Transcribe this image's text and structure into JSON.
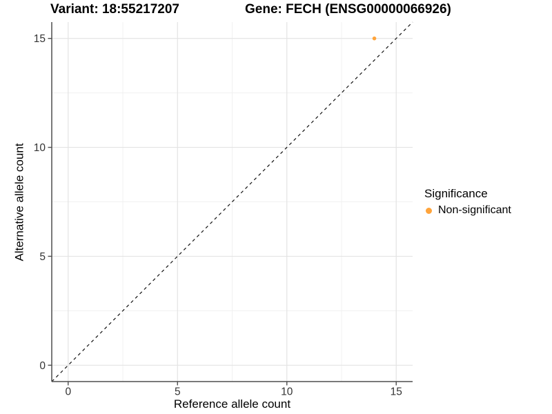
{
  "titles": {
    "variant": "Variant: 18:55217207",
    "gene": "Gene: FECH (ENSG00000066926)"
  },
  "chart_data": {
    "type": "scatter",
    "title_left": "Variant: 18:55217207",
    "title_right": "Gene: FECH (ENSG00000066926)",
    "xlabel": "Reference allele count",
    "ylabel": "Alternative allele count",
    "xlim": [
      -0.75,
      15.75
    ],
    "ylim": [
      -0.75,
      15.75
    ],
    "x_ticks": [
      0,
      5,
      10,
      15
    ],
    "y_ticks": [
      0,
      5,
      10,
      15
    ],
    "x_minor_ticks": [
      2.5,
      7.5,
      12.5
    ],
    "y_minor_ticks": [
      2.5,
      7.5,
      12.5
    ],
    "grid": true,
    "points": [
      {
        "x": 14,
        "y": 15,
        "significance": "Non-significant"
      }
    ],
    "abline": {
      "slope": 1,
      "intercept": 0,
      "style": "dashed",
      "color": "#111111"
    },
    "legend": {
      "title": "Significance",
      "position": "right",
      "entries": [
        {
          "label": "Non-significant",
          "color": "#FFA43B"
        }
      ]
    }
  },
  "colors": {
    "background": "#ffffff",
    "axis_line": "#4d4d4d",
    "tick_label": "#333333",
    "grid_major": "#e3e3e3",
    "grid_minor": "#f0f0f0",
    "point": "#FFA43B"
  }
}
